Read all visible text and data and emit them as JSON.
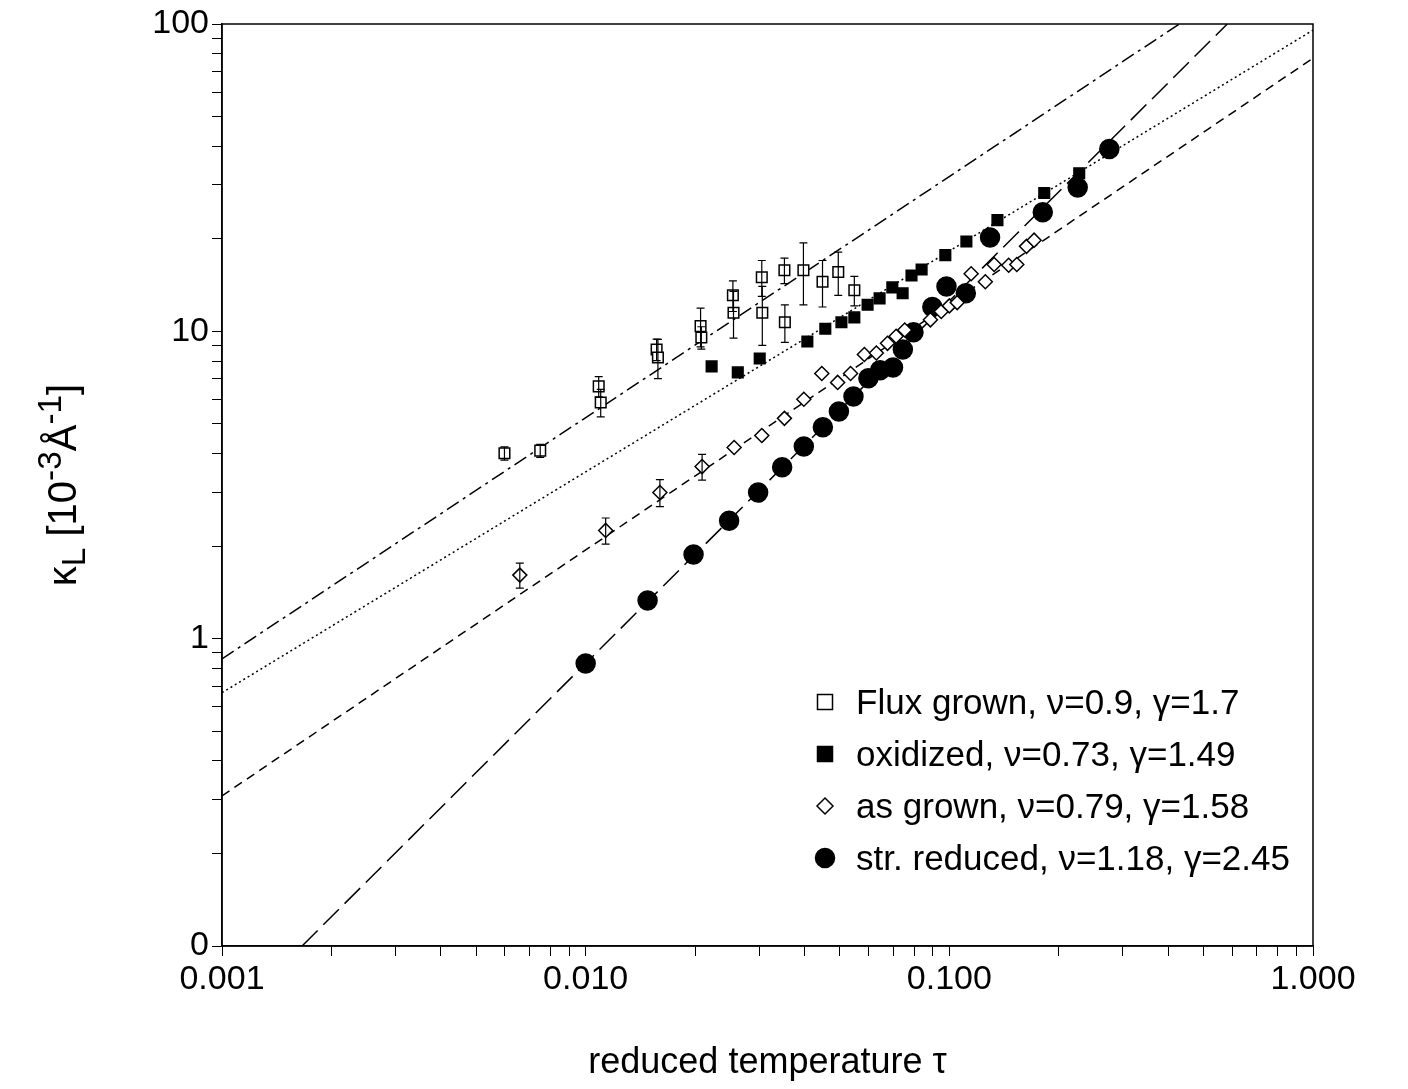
{
  "chart_data": {
    "type": "scatter",
    "xlabel": "reduced temperature τ",
    "ylabel": "κ$_{L}$ [10$^{-3}$Å$^{-1}$]",
    "log": "xy",
    "grid": false,
    "legend": "bottom right",
    "xlim": [
      0.001,
      1
    ],
    "ylim": [
      0.1,
      100
    ],
    "xticks": [
      {
        "value": 0.001,
        "label": "0.001"
      },
      {
        "value": 0.002,
        "label": null
      },
      {
        "value": 0.003,
        "label": null
      },
      {
        "value": 0.004,
        "label": null
      },
      {
        "value": 0.005,
        "label": null
      },
      {
        "value": 0.006,
        "label": null
      },
      {
        "value": 0.007,
        "label": null
      },
      {
        "value": 0.008,
        "label": null
      },
      {
        "value": 0.009,
        "label": null
      },
      {
        "value": 0.01,
        "label": "0.010"
      },
      {
        "value": 0.02,
        "label": null
      },
      {
        "value": 0.03,
        "label": null
      },
      {
        "value": 0.04,
        "label": null
      },
      {
        "value": 0.05,
        "label": null
      },
      {
        "value": 0.06,
        "label": null
      },
      {
        "value": 0.07,
        "label": null
      },
      {
        "value": 0.08,
        "label": null
      },
      {
        "value": 0.09,
        "label": null
      },
      {
        "value": 0.1,
        "label": "0.100"
      },
      {
        "value": 0.2,
        "label": null
      },
      {
        "value": 0.3,
        "label": null
      },
      {
        "value": 0.4,
        "label": null
      },
      {
        "value": 0.5,
        "label": null
      },
      {
        "value": 0.6,
        "label": null
      },
      {
        "value": 0.7,
        "label": null
      },
      {
        "value": 0.8,
        "label": null
      },
      {
        "value": 0.9,
        "label": null
      },
      {
        "value": 1,
        "label": "1.000"
      }
    ],
    "yticks": [
      {
        "value": 0.1,
        "label": "0"
      },
      {
        "value": 0.2,
        "label": null
      },
      {
        "value": 0.3,
        "label": null
      },
      {
        "value": 0.4,
        "label": null
      },
      {
        "value": 0.5,
        "label": null
      },
      {
        "value": 0.6,
        "label": null
      },
      {
        "value": 0.7,
        "label": null
      },
      {
        "value": 0.8,
        "label": null
      },
      {
        "value": 0.9,
        "label": null
      },
      1,
      {
        "value": 2,
        "label": null
      },
      {
        "value": 3,
        "label": null
      },
      {
        "value": 4,
        "label": null
      },
      {
        "value": 5,
        "label": null
      },
      {
        "value": 6,
        "label": null
      },
      {
        "value": 7,
        "label": null
      },
      {
        "value": 8,
        "label": null
      },
      {
        "value": 9,
        "label": null
      },
      10,
      {
        "value": 20,
        "label": null
      },
      {
        "value": 30,
        "label": null
      },
      {
        "value": 40,
        "label": null
      },
      {
        "value": 50,
        "label": null
      },
      {
        "value": 60,
        "label": null
      },
      {
        "value": 70,
        "label": null
      },
      {
        "value": 80,
        "label": null
      },
      {
        "value": 90,
        "label": null
      },
      100
    ],
    "series": [
      {
        "name": "Flux grown, ν=0.9, γ=1.7",
        "color": "#ffffff",
        "marker": "square",
        "x": [
          0.00598,
          0.0075,
          0.01086,
          0.011,
          0.01567,
          0.0158,
          0.0207,
          0.0208,
          0.0254,
          0.0255,
          0.0305,
          0.0306,
          0.0352,
          0.0353,
          0.0397,
          0.0448,
          0.0495,
          0.0548
        ],
        "values": [
          4.01,
          4.09,
          6.62,
          5.87,
          8.73,
          8.22,
          10.4,
          9.55,
          13.1,
          11.5,
          15.0,
          11.5,
          15.8,
          10.7,
          15.8,
          14.5,
          15.6,
          13.6
        ],
        "errors": [
          0.2,
          0.2,
          0.5,
          0.6,
          0.7,
          1.2,
          1.5,
          0.8,
          1.5,
          2,
          2,
          2.5,
          1.5,
          1.5,
          3.6,
          2.5,
          2.5,
          1.5
        ]
      },
      {
        "name": "oxidized, ν=0.73, γ=1.49",
        "color": "#000000",
        "marker": "square",
        "x": [
          0.0222,
          0.0262,
          0.0301,
          0.0407,
          0.0456,
          0.0505,
          0.0548,
          0.0596,
          0.0643,
          0.0697,
          0.0744,
          0.0787,
          0.0839,
          0.0975,
          0.1114,
          0.1356,
          0.1824,
          0.2276
        ],
        "values": [
          7.69,
          7.35,
          8.16,
          9.27,
          10.2,
          10.7,
          11.1,
          12.2,
          12.8,
          13.9,
          13.3,
          15.2,
          15.9,
          17.7,
          19.6,
          23.0,
          28.2,
          32.7
        ]
      },
      {
        "name": "as grown, ν=0.79, γ=1.58",
        "color": "#ffffff",
        "marker": "diamond",
        "x": [
          0.00659,
          0.01135,
          0.016,
          0.0209,
          0.0256,
          0.0305,
          0.0352,
          0.0398,
          0.0446,
          0.0493,
          0.0535,
          0.0584,
          0.063,
          0.0676,
          0.0714,
          0.0754,
          0.0887,
          0.095,
          0.1,
          0.1051,
          0.1148,
          0.1256,
          0.1328,
          0.1456,
          0.1533,
          0.163,
          0.171
        ],
        "values": [
          1.61,
          2.25,
          2.99,
          3.63,
          4.19,
          4.58,
          5.21,
          6.01,
          7.29,
          6.82,
          7.29,
          8.41,
          8.5,
          9.14,
          9.64,
          10.1,
          10.9,
          11.6,
          12.1,
          12.4,
          15.4,
          14.5,
          16.5,
          16.4,
          16.5,
          18.9,
          19.8
        ],
        "errors": [
          0.15,
          0.22,
          0.3,
          0.35,
          null,
          null,
          null,
          null,
          null,
          null,
          null,
          null,
          null,
          null,
          null,
          null,
          null,
          null,
          null,
          null,
          null,
          null,
          null,
          null,
          null,
          null,
          null
        ]
      },
      {
        "name": "str. reduced, ν=1.18, γ=2.45",
        "color": "#000000",
        "marker": "circle",
        "x": [
          0.01,
          0.0148,
          0.0198,
          0.0248,
          0.0298,
          0.0347,
          0.0398,
          0.0449,
          0.0497,
          0.0545,
          0.0599,
          0.0645,
          0.07,
          0.0745,
          0.0797,
          0.0898,
          0.0982,
          0.111,
          0.1294,
          0.1807,
          0.2254,
          0.2754
        ],
        "values": [
          0.83,
          1.33,
          1.88,
          2.42,
          2.99,
          3.61,
          4.22,
          4.87,
          5.48,
          6.14,
          7.03,
          7.47,
          7.62,
          8.73,
          9.93,
          12.0,
          14.0,
          13.3,
          20.2,
          24.4,
          29.4,
          39.2
        ],
        "errors": [
          null,
          null,
          null,
          null,
          null,
          null,
          null,
          null,
          null,
          null,
          null,
          null,
          null,
          null,
          null,
          null,
          null,
          null,
          null,
          null,
          null,
          2
        ]
      },
      {
        "type": "line",
        "line_style": "dashdot",
        "color": "#000000",
        "x": [
          0.001,
          0.429
        ],
        "values": [
          0.86,
          100
        ]
      },
      {
        "type": "line",
        "line_style": "dotted",
        "color": "#000000",
        "x": [
          0.001,
          1
        ],
        "values": [
          0.667,
          95.5
        ]
      },
      {
        "type": "line",
        "line_style": "dashed",
        "color": "#000000",
        "x": [
          0.001,
          1
        ],
        "values": [
          0.308,
          77.4
        ]
      },
      {
        "type": "line",
        "line_style": "longdash",
        "color": "#000000",
        "x": [
          0.00166,
          0.581
        ],
        "values": [
          0.1,
          100
        ]
      }
    ]
  }
}
